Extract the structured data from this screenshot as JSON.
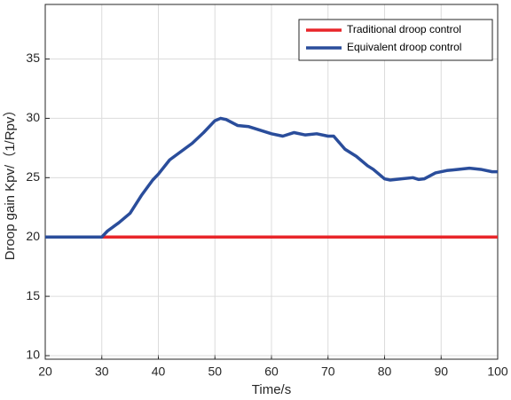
{
  "chart_data": {
    "type": "line",
    "xlabel": "Time/s",
    "ylabel": "Droop gain Kpv/（1/Rpv）",
    "xlim": [
      20,
      100
    ],
    "xticks": [
      20,
      30,
      40,
      50,
      60,
      70,
      80,
      90,
      100
    ],
    "ylim": [
      9.7,
      39.6
    ],
    "yticks": [
      10,
      15,
      20,
      25,
      30,
      35
    ],
    "legend": "upper right",
    "series": [
      {
        "name": "Traditional droop control",
        "color": "#e8262a",
        "x": [
          20,
          100
        ],
        "values": [
          20,
          20
        ]
      },
      {
        "name": "Equivalent droop control",
        "color": "#2a4d9b",
        "x": [
          20,
          30,
          31,
          33,
          35,
          37,
          39,
          40,
          42,
          44,
          46,
          48,
          50,
          51,
          52,
          54,
          56,
          58,
          60,
          62,
          64,
          66,
          68,
          70,
          71,
          73,
          75,
          77,
          78,
          80,
          81,
          83,
          85,
          86,
          87,
          89,
          91,
          93,
          95,
          97,
          99,
          100
        ],
        "values": [
          20,
          20,
          20.5,
          21.2,
          22,
          23.5,
          24.8,
          25.3,
          26.5,
          27.2,
          27.9,
          28.8,
          29.8,
          30,
          29.9,
          29.4,
          29.3,
          29.0,
          28.7,
          28.5,
          28.8,
          28.6,
          28.7,
          28.5,
          28.5,
          27.4,
          26.8,
          26,
          25.7,
          24.9,
          24.8,
          24.9,
          25.0,
          24.85,
          24.9,
          25.4,
          25.6,
          25.7,
          25.8,
          25.7,
          25.5,
          25.5
        ]
      }
    ]
  }
}
